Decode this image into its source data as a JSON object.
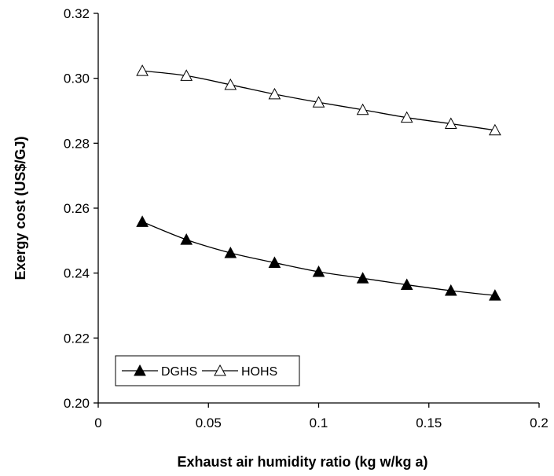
{
  "chart_data": {
    "type": "line",
    "title": "",
    "xlabel": "Exhaust air humidity ratio (kg w/kg a)",
    "ylabel": "Exergy cost (US$/GJ)",
    "xlim": [
      0,
      0.2
    ],
    "ylim": [
      0.2,
      0.32
    ],
    "xticks": [
      "0",
      "0.05",
      "0.1",
      "0.15",
      "0.2"
    ],
    "yticks": [
      "0.20",
      "0.22",
      "0.24",
      "0.26",
      "0.28",
      "0.30",
      "0.32"
    ],
    "xtick_values": [
      0,
      0.05,
      0.1,
      0.15,
      0.2
    ],
    "ytick_values": [
      0.2,
      0.22,
      0.24,
      0.26,
      0.28,
      0.3,
      0.32
    ],
    "grid": false,
    "legend_position": "bottom-left",
    "x": [
      0.02,
      0.04,
      0.06,
      0.08,
      0.1,
      0.12,
      0.14,
      0.16,
      0.18
    ],
    "series": [
      {
        "name": "DGHS",
        "marker": "filled-triangle",
        "color": "#000000",
        "values": [
          0.2558,
          0.2503,
          0.2462,
          0.2432,
          0.2404,
          0.2384,
          0.2364,
          0.2346,
          0.2331
        ]
      },
      {
        "name": "HOHS",
        "marker": "open-triangle",
        "color": "#000000",
        "values": [
          0.3023,
          0.3008,
          0.298,
          0.2951,
          0.2926,
          0.2903,
          0.2879,
          0.286,
          0.284
        ]
      }
    ]
  }
}
